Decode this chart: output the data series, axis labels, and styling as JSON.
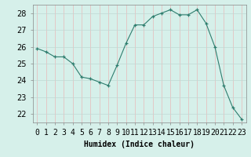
{
  "x": [
    0,
    1,
    2,
    3,
    4,
    5,
    6,
    7,
    8,
    9,
    10,
    11,
    12,
    13,
    14,
    15,
    16,
    17,
    18,
    19,
    20,
    21,
    22,
    23
  ],
  "y": [
    25.9,
    25.7,
    25.4,
    25.4,
    25.0,
    24.2,
    24.1,
    23.9,
    23.7,
    24.9,
    26.2,
    27.3,
    27.3,
    27.8,
    28.0,
    28.2,
    27.9,
    27.9,
    28.2,
    27.4,
    26.0,
    23.7,
    22.4,
    21.7
  ],
  "line_color": "#2e7d6e",
  "marker": "+",
  "marker_size": 3,
  "bg_color": "#d6f0ea",
  "grid_color_h": "#c0d8d4",
  "grid_color_v": "#e8b8b8",
  "xlabel": "Humidex (Indice chaleur)",
  "ylim": [
    21.5,
    28.5
  ],
  "yticks": [
    22,
    23,
    24,
    25,
    26,
    27,
    28
  ],
  "xlim": [
    -0.5,
    23.5
  ],
  "xlabel_fontsize": 7,
  "tick_fontsize": 7
}
